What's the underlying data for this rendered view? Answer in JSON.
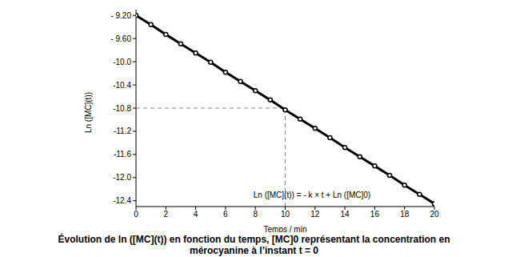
{
  "chart_data": {
    "type": "line",
    "x_label": "Temps / min",
    "y_label": "Ln ([MC](t))",
    "x": [
      0,
      1,
      2,
      3,
      4,
      5,
      6,
      7,
      8,
      9,
      10,
      11,
      12,
      13,
      14,
      15,
      16,
      17,
      18,
      19,
      20
    ],
    "values": [
      -9.2,
      -9.36,
      -9.53,
      -9.69,
      -9.85,
      -10.01,
      -10.18,
      -10.34,
      -10.5,
      -10.66,
      -10.83,
      -10.99,
      -11.15,
      -11.31,
      -11.48,
      -11.64,
      -11.8,
      -11.96,
      -12.13,
      -12.29,
      -12.45
    ],
    "color": "#000000",
    "marker": "circle",
    "line_style": "solid",
    "xlim": [
      0,
      20
    ],
    "xticks": [
      0,
      2,
      4,
      6,
      8,
      10,
      12,
      14,
      16,
      18,
      20
    ],
    "ylim": [
      -12.5,
      -9.1
    ],
    "yticks": [
      {
        "value": -9.2,
        "label": "- 9.20"
      },
      {
        "value": -9.6,
        "label": "- 9.60"
      },
      {
        "value": -10,
        "label": "-10.0"
      },
      -10.4,
      -10.8,
      -11.2,
      -11.6,
      {
        "value": -12,
        "label": "-12.0"
      },
      -12.4
    ],
    "grid": false,
    "guide_point": {
      "x": 10,
      "y": -10.8
    },
    "equation": "Ln ([MC](t)) = - k × t + Ln ([MC]0)",
    "caption": [
      "Évolution de ln ([MC](t)) en fonction du temps, [MC]0 représentant la concentration en",
      "mérocyanine à l’instant t = 0"
    ]
  }
}
